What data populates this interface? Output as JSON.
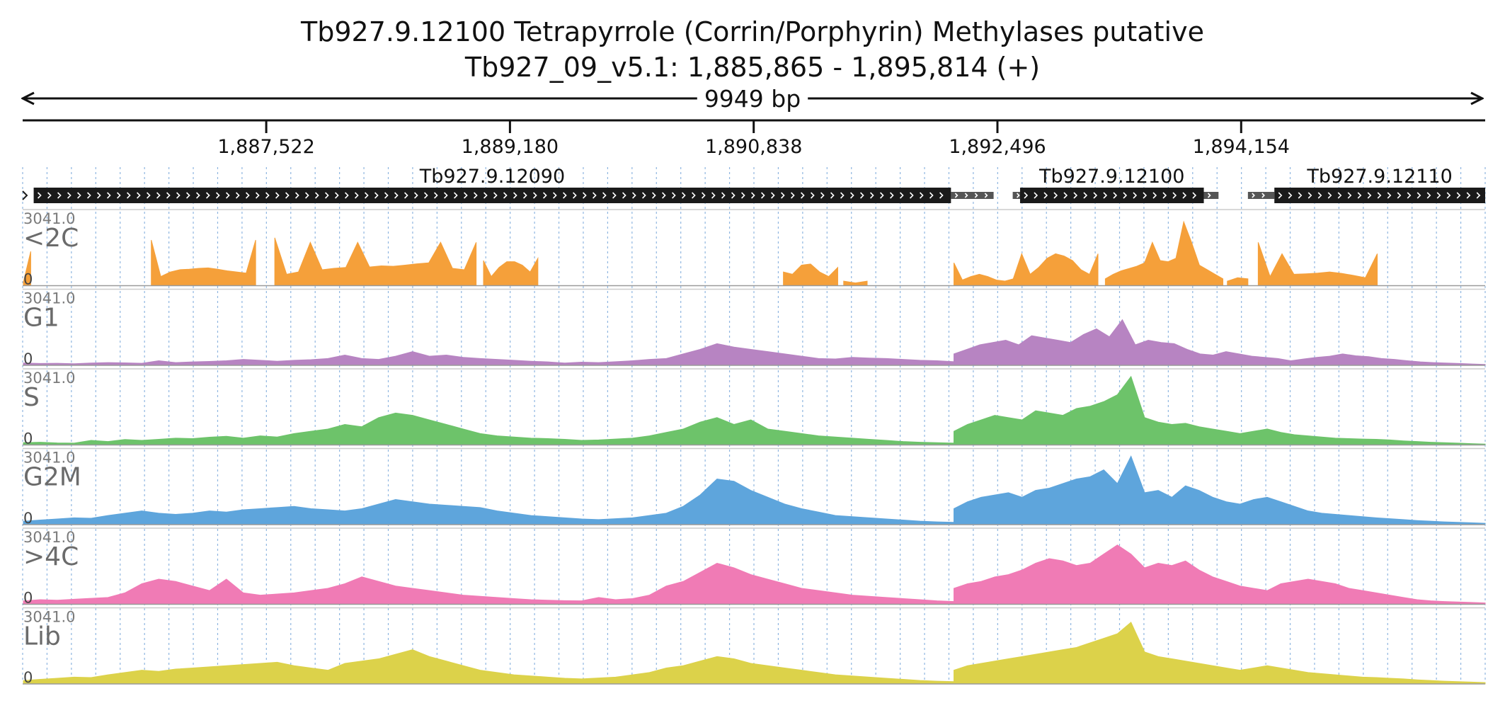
{
  "title": {
    "line1": "Tb927.9.12100  Tetrapyrrole (Corrin/Porphyrin) Methylases  putative",
    "line2": "Tb927_09_v5.1: 1,885,865 - 1,895,814 (+)"
  },
  "span_label": "9949 bp",
  "chart_data": {
    "type": "area",
    "region": {
      "start": 1885865,
      "end": 1895814,
      "strand": "+"
    },
    "x_ticks": [
      {
        "value": 1887522,
        "label": "1,887,522"
      },
      {
        "value": 1889180,
        "label": "1,889,180"
      },
      {
        "value": 1890838,
        "label": "1,890,838"
      },
      {
        "value": 1892496,
        "label": "1,892,496"
      },
      {
        "value": 1894154,
        "label": "1,894,154"
      }
    ],
    "genes": [
      {
        "name": "Tb927.9.12090",
        "cds_start": 1885940,
        "cds_end": 1892180,
        "utr_end": 1892470
      },
      {
        "name": "Tb927.9.12100",
        "utr_start": 1892600,
        "cds_start": 1892650,
        "cds_end": 1893900,
        "utr_end": 1894000
      },
      {
        "name": "Tb927.9.12110",
        "utr_start": 1894200,
        "cds_start": 1894380,
        "cds_end": 1895814
      }
    ],
    "y_range": [
      0,
      3041.0
    ],
    "y_max_label": "3041.0",
    "y_min_label": "0",
    "tracks": [
      {
        "name": "<2C",
        "color": "#f5a03a",
        "segments": [
          {
            "start": 1885870,
            "end": 1885920,
            "values": [
              150,
              1500
            ]
          },
          {
            "start": 1886740,
            "end": 1887450,
            "values": [
              2000,
              400,
              600,
              700,
              720,
              760,
              780,
              720,
              650,
              600,
              550,
              2000
            ]
          },
          {
            "start": 1887580,
            "end": 1888950,
            "values": [
              2100,
              500,
              600,
              1900,
              700,
              760,
              800,
              1900,
              820,
              870,
              850,
              900,
              960,
              1000,
              1900,
              760,
              700,
              1900
            ]
          },
          {
            "start": 1889000,
            "end": 1889370,
            "values": [
              1100,
              400,
              800,
              1050,
              1050,
              900,
              600,
              1200
            ]
          },
          {
            "start": 1891040,
            "end": 1891410,
            "values": [
              600,
              500,
              900,
              950,
              600,
              400,
              800
            ]
          },
          {
            "start": 1891450,
            "end": 1891610,
            "values": [
              200,
              120,
              200
            ]
          },
          {
            "start": 1892200,
            "end": 1893180,
            "values": [
              1000,
              250,
              400,
              500,
              400,
              250,
              200,
              300,
              1400,
              500,
              800,
              1200,
              1400,
              1300,
              1100,
              700,
              500,
              1400
            ]
          },
          {
            "start": 1893230,
            "end": 1894030,
            "values": [
              300,
              500,
              650,
              750,
              850,
              1000,
              1900,
              1100,
              1050,
              1200,
              2800,
              1900,
              900,
              700,
              500,
              300
            ]
          },
          {
            "start": 1894060,
            "end": 1894200,
            "values": [
              200,
              350,
              300
            ]
          },
          {
            "start": 1894270,
            "end": 1895080,
            "values": [
              1900,
              400,
              1400,
              500,
              520,
              550,
              600,
              540,
              450,
              350,
              1400
            ]
          }
        ]
      },
      {
        "name": "G1",
        "color": "#b784c2",
        "segments": [
          {
            "start": 1885870,
            "end": 1892200,
            "values": [
              100,
              80,
              90,
              70,
              100,
              120,
              110,
              90,
              200,
              120,
              150,
              170,
              200,
              260,
              220,
              180,
              220,
              250,
              300,
              450,
              300,
              260,
              400,
              600,
              400,
              450,
              350,
              300,
              260,
              220,
              180,
              150,
              100,
              140,
              120,
              160,
              200,
              260,
              300,
              500,
              700,
              950,
              800,
              700,
              600,
              500,
              400,
              300,
              280,
              350,
              320,
              300,
              260,
              220,
              200,
              160
            ]
          },
          {
            "start": 1892200,
            "end": 1895814,
            "values": [
              500,
              700,
              900,
              1000,
              1100,
              900,
              1300,
              1200,
              1100,
              1000,
              1350,
              1600,
              1250,
              2000,
              900,
              1100,
              1000,
              950,
              700,
              500,
              450,
              600,
              500,
              400,
              350,
              300,
              200,
              280,
              350,
              400,
              500,
              420,
              380,
              300,
              260,
              200,
              150,
              120,
              100,
              80,
              60,
              40
            ]
          }
        ]
      },
      {
        "name": "S",
        "color": "#6dc36a",
        "segments": [
          {
            "start": 1885870,
            "end": 1892200,
            "values": [
              100,
              120,
              90,
              80,
              200,
              150,
              240,
              200,
              250,
              300,
              280,
              340,
              380,
              300,
              400,
              350,
              500,
              600,
              700,
              900,
              800,
              1200,
              1400,
              1300,
              1100,
              900,
              700,
              500,
              400,
              350,
              300,
              280,
              250,
              200,
              220,
              260,
              300,
              400,
              550,
              700,
              1000,
              1200,
              900,
              1100,
              700,
              600,
              500,
              400,
              350,
              300,
              250,
              200,
              150,
              120,
              100,
              80
            ]
          },
          {
            "start": 1892200,
            "end": 1895814,
            "values": [
              600,
              900,
              1100,
              1300,
              1200,
              1100,
              1500,
              1400,
              1300,
              1600,
              1700,
              1900,
              2200,
              3000,
              1200,
              1000,
              900,
              950,
              800,
              700,
              600,
              500,
              600,
              700,
              550,
              450,
              400,
              350,
              300,
              280,
              260,
              250,
              220,
              180,
              150,
              120,
              100,
              80,
              60,
              40
            ]
          }
        ]
      },
      {
        "name": "G2M",
        "color": "#5ea5dc",
        "segments": [
          {
            "start": 1885870,
            "end": 1892200,
            "values": [
              150,
              200,
              250,
              300,
              280,
              400,
              500,
              600,
              500,
              450,
              500,
              600,
              550,
              650,
              700,
              750,
              800,
              700,
              650,
              600,
              700,
              900,
              1100,
              1000,
              900,
              850,
              800,
              750,
              600,
              500,
              400,
              350,
              300,
              250,
              220,
              260,
              300,
              400,
              500,
              800,
              1300,
              2000,
              1900,
              1500,
              1200,
              900,
              700,
              550,
              400,
              350,
              300,
              250,
              200,
              150,
              120,
              100
            ]
          },
          {
            "start": 1892200,
            "end": 1895814,
            "values": [
              700,
              1000,
              1200,
              1300,
              1400,
              1200,
              1500,
              1600,
              1800,
              2000,
              2100,
              2400,
              1800,
              3000,
              1400,
              1500,
              1200,
              1700,
              1500,
              1200,
              1000,
              900,
              1100,
              1200,
              1000,
              800,
              600,
              500,
              450,
              400,
              350,
              300,
              260,
              220,
              180,
              150,
              120,
              100,
              80,
              60
            ]
          }
        ]
      },
      {
        "name": ">4C",
        "color": "#f07bb5",
        "segments": [
          {
            "start": 1885870,
            "end": 1892200,
            "values": [
              150,
              200,
              180,
              220,
              260,
              300,
              500,
              900,
              1100,
              1000,
              800,
              600,
              1100,
              500,
              400,
              450,
              500,
              600,
              700,
              900,
              1200,
              1000,
              800,
              700,
              600,
              500,
              400,
              350,
              300,
              250,
              200,
              180,
              160,
              150,
              300,
              200,
              250,
              400,
              800,
              1000,
              1400,
              1800,
              1600,
              1300,
              1100,
              900,
              700,
              600,
              500,
              400,
              350,
              300,
              250,
              200,
              150,
              120
            ]
          },
          {
            "start": 1892200,
            "end": 1895814,
            "values": [
              700,
              900,
              1000,
              1200,
              1300,
              1500,
              1800,
              2000,
              1900,
              1700,
              1800,
              2200,
              2600,
              2200,
              1600,
              1800,
              1700,
              1900,
              1500,
              1200,
              1000,
              800,
              700,
              600,
              900,
              1000,
              1100,
              1000,
              900,
              700,
              600,
              500,
              400,
              300,
              200,
              150,
              120,
              100,
              80,
              60
            ]
          }
        ]
      },
      {
        "name": "Lib",
        "color": "#dcd24a",
        "segments": [
          {
            "start": 1885870,
            "end": 1892200,
            "values": [
              150,
              200,
              250,
              300,
              280,
              400,
              500,
              600,
              550,
              650,
              700,
              750,
              800,
              850,
              900,
              950,
              800,
              700,
              600,
              900,
              1000,
              1100,
              1300,
              1500,
              1200,
              1000,
              800,
              600,
              500,
              400,
              350,
              300,
              250,
              220,
              260,
              300,
              400,
              500,
              700,
              800,
              1000,
              1200,
              1100,
              900,
              800,
              700,
              600,
              500,
              400,
              350,
              300,
              250,
              200,
              150,
              120,
              100
            ]
          },
          {
            "start": 1892200,
            "end": 1895814,
            "values": [
              600,
              800,
              900,
              1000,
              1100,
              1200,
              1300,
              1400,
              1500,
              1600,
              1800,
              2000,
              2200,
              2700,
              1400,
              1200,
              1100,
              1000,
              900,
              800,
              700,
              600,
              700,
              800,
              700,
              600,
              500,
              450,
              400,
              350,
              300,
              280,
              250,
              220,
              180,
              150,
              120,
              100,
              80,
              60
            ]
          }
        ]
      }
    ]
  }
}
